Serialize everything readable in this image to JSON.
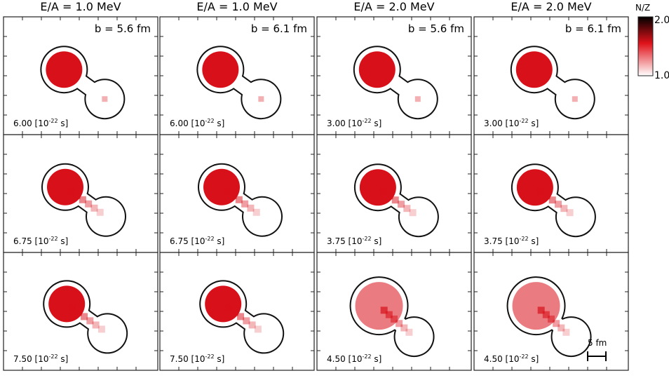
{
  "columns": [
    {
      "title": "E/A = 1.0 MeV",
      "impact_label": "b = 5.6 fm"
    },
    {
      "title": "E/A = 1.0 MeV",
      "impact_label": "b = 6.1 fm"
    },
    {
      "title": "E/A = 2.0 MeV",
      "impact_label": "b = 5.6 fm"
    },
    {
      "title": "E/A = 2.0 MeV",
      "impact_label": "b = 6.1 fm"
    }
  ],
  "time_unit_base": "[10",
  "time_unit_exp": "-22",
  "time_unit_tail": " s]",
  "times": [
    [
      "6.00",
      "6.00",
      "3.00",
      "3.00"
    ],
    [
      "6.75",
      "6.75",
      "3.75",
      "3.75"
    ],
    [
      "7.50",
      "7.50",
      "4.50",
      "4.50"
    ]
  ],
  "colorbar": {
    "title": "N/Z",
    "max_label": "2.0",
    "min_label": "1.0",
    "color_low": "#ffffff",
    "color_mid": "#e0121a",
    "color_high": "#000000"
  },
  "scale_bar_label": "5 fm",
  "colors": {
    "frame": "#222222",
    "contour": "#111111",
    "core": "#d8101a"
  }
}
